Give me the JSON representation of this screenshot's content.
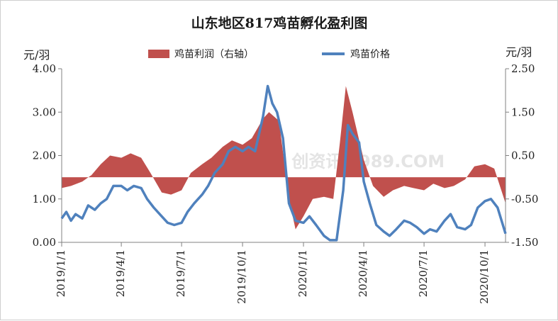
{
  "chart_data": {
    "type": "bar+line",
    "title": "山东地区817鸡苗孵化盈利图",
    "left_axis": {
      "unit": "元/羽",
      "ylim": [
        0,
        4
      ],
      "ticks": [
        "0.00",
        "1.00",
        "2.00",
        "3.00",
        "4.00"
      ]
    },
    "right_axis": {
      "unit": "元/羽",
      "ylim": [
        -1.5,
        2.5
      ],
      "ticks": [
        "-1.50",
        "-0.50",
        "0.50",
        "1.50",
        "2.50"
      ]
    },
    "x_dates": [
      "2019/1/1",
      "2019/4/1",
      "2019/7/1",
      "2019/10/1",
      "2020/1/1",
      "2020/4/1",
      "2020/7/1",
      "2020/10/1"
    ],
    "x_range": [
      "2019-01-01",
      "2020-11-01"
    ],
    "legend": {
      "position": "top"
    },
    "watermark": "鸡 创资讯 s989.COM",
    "series": [
      {
        "name": "鸡苗利润（右轴）",
        "kind": "bar",
        "axis": "right",
        "color": "#c0504d",
        "points": [
          [
            "2019-01-01",
            -0.25
          ],
          [
            "2019-01-15",
            -0.2
          ],
          [
            "2019-02-01",
            -0.1
          ],
          [
            "2019-02-15",
            0.05
          ],
          [
            "2019-03-01",
            0.3
          ],
          [
            "2019-03-15",
            0.5
          ],
          [
            "2019-04-01",
            0.45
          ],
          [
            "2019-04-15",
            0.55
          ],
          [
            "2019-05-01",
            0.45
          ],
          [
            "2019-05-15",
            0.1
          ],
          [
            "2019-06-01",
            -0.35
          ],
          [
            "2019-06-15",
            -0.4
          ],
          [
            "2019-07-01",
            -0.3
          ],
          [
            "2019-07-15",
            0.1
          ],
          [
            "2019-08-01",
            0.3
          ],
          [
            "2019-08-15",
            0.45
          ],
          [
            "2019-09-01",
            0.7
          ],
          [
            "2019-09-15",
            0.85
          ],
          [
            "2019-10-01",
            0.75
          ],
          [
            "2019-10-15",
            0.9
          ],
          [
            "2019-11-01",
            1.35
          ],
          [
            "2019-11-10",
            1.5
          ],
          [
            "2019-11-25",
            1.3
          ],
          [
            "2019-12-10",
            -0.5
          ],
          [
            "2019-12-20",
            -1.2
          ],
          [
            "2020-01-01",
            -0.9
          ],
          [
            "2020-01-15",
            -0.5
          ],
          [
            "2020-02-01",
            -0.45
          ],
          [
            "2020-02-15",
            -0.5
          ],
          [
            "2020-02-25",
            0.8
          ],
          [
            "2020-03-05",
            2.1
          ],
          [
            "2020-03-15",
            1.5
          ],
          [
            "2020-04-01",
            0.4
          ],
          [
            "2020-04-15",
            -0.2
          ],
          [
            "2020-05-01",
            -0.45
          ],
          [
            "2020-05-15",
            -0.3
          ],
          [
            "2020-06-01",
            -0.2
          ],
          [
            "2020-06-15",
            -0.25
          ],
          [
            "2020-07-01",
            -0.3
          ],
          [
            "2020-07-15",
            -0.15
          ],
          [
            "2020-08-01",
            -0.25
          ],
          [
            "2020-08-15",
            -0.2
          ],
          [
            "2020-09-01",
            -0.05
          ],
          [
            "2020-09-15",
            0.25
          ],
          [
            "2020-10-01",
            0.3
          ],
          [
            "2020-10-15",
            0.2
          ],
          [
            "2020-11-01",
            -0.6
          ]
        ]
      },
      {
        "name": "鸡苗价格",
        "kind": "line",
        "axis": "left",
        "color": "#4f81bd",
        "points": [
          [
            "2019-01-01",
            0.55
          ],
          [
            "2019-01-08",
            0.7
          ],
          [
            "2019-01-15",
            0.5
          ],
          [
            "2019-01-22",
            0.65
          ],
          [
            "2019-02-01",
            0.55
          ],
          [
            "2019-02-10",
            0.85
          ],
          [
            "2019-02-20",
            0.75
          ],
          [
            "2019-03-01",
            0.9
          ],
          [
            "2019-03-10",
            1.0
          ],
          [
            "2019-03-20",
            1.3
          ],
          [
            "2019-04-01",
            1.3
          ],
          [
            "2019-04-10",
            1.2
          ],
          [
            "2019-04-20",
            1.3
          ],
          [
            "2019-05-01",
            1.25
          ],
          [
            "2019-05-10",
            1.0
          ],
          [
            "2019-05-20",
            0.8
          ],
          [
            "2019-06-01",
            0.6
          ],
          [
            "2019-06-10",
            0.45
          ],
          [
            "2019-06-20",
            0.4
          ],
          [
            "2019-07-01",
            0.45
          ],
          [
            "2019-07-10",
            0.7
          ],
          [
            "2019-07-20",
            0.9
          ],
          [
            "2019-08-01",
            1.1
          ],
          [
            "2019-08-10",
            1.3
          ],
          [
            "2019-08-20",
            1.6
          ],
          [
            "2019-09-01",
            1.8
          ],
          [
            "2019-09-10",
            2.1
          ],
          [
            "2019-09-20",
            2.2
          ],
          [
            "2019-10-01",
            2.1
          ],
          [
            "2019-10-10",
            2.2
          ],
          [
            "2019-10-20",
            2.1
          ],
          [
            "2019-11-01",
            2.9
          ],
          [
            "2019-11-08",
            3.6
          ],
          [
            "2019-11-15",
            3.2
          ],
          [
            "2019-11-22",
            3.0
          ],
          [
            "2019-12-01",
            2.4
          ],
          [
            "2019-12-10",
            0.9
          ],
          [
            "2019-12-20",
            0.5
          ],
          [
            "2020-01-01",
            0.45
          ],
          [
            "2020-01-10",
            0.6
          ],
          [
            "2020-01-20",
            0.4
          ],
          [
            "2020-02-01",
            0.15
          ],
          [
            "2020-02-10",
            0.05
          ],
          [
            "2020-02-20",
            0.05
          ],
          [
            "2020-03-01",
            1.2
          ],
          [
            "2020-03-08",
            2.7
          ],
          [
            "2020-03-15",
            2.5
          ],
          [
            "2020-03-25",
            2.3
          ],
          [
            "2020-04-01",
            1.4
          ],
          [
            "2020-04-10",
            0.9
          ],
          [
            "2020-04-20",
            0.4
          ],
          [
            "2020-05-01",
            0.25
          ],
          [
            "2020-05-10",
            0.15
          ],
          [
            "2020-05-20",
            0.3
          ],
          [
            "2020-06-01",
            0.5
          ],
          [
            "2020-06-10",
            0.45
          ],
          [
            "2020-06-20",
            0.35
          ],
          [
            "2020-07-01",
            0.2
          ],
          [
            "2020-07-10",
            0.3
          ],
          [
            "2020-07-20",
            0.25
          ],
          [
            "2020-08-01",
            0.5
          ],
          [
            "2020-08-10",
            0.65
          ],
          [
            "2020-08-20",
            0.35
          ],
          [
            "2020-09-01",
            0.3
          ],
          [
            "2020-09-10",
            0.4
          ],
          [
            "2020-09-20",
            0.8
          ],
          [
            "2020-10-01",
            0.95
          ],
          [
            "2020-10-10",
            1.0
          ],
          [
            "2020-10-20",
            0.8
          ],
          [
            "2020-11-01",
            0.2
          ]
        ]
      }
    ]
  }
}
